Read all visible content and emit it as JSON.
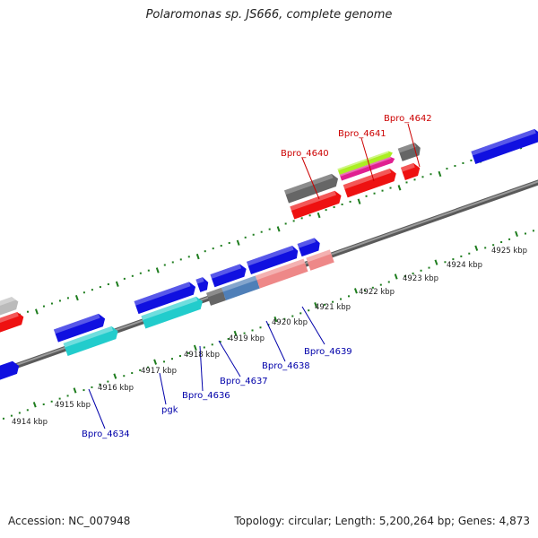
{
  "title": "Polaromonas sp. JS666, complete genome",
  "footer": {
    "accession": "Accession: NC_007948",
    "summary": "Topology: circular; Length: 5,200,264 bp; Genes: 4,873"
  },
  "colors": {
    "backbone": "#7a7a7a",
    "scale_dots": "#1e7d1e",
    "label_red": "#cc0000",
    "label_blue": "#0000aa",
    "blue": "#1010e0",
    "red": "#ee1111",
    "cyan": "#22cccc",
    "gray": "#666666",
    "lightgray": "#bbbbbb",
    "salmon": "#ee8888",
    "steel": "#4f7fb8",
    "lime": "#aaee22",
    "magenta": "#e02090"
  },
  "scale": {
    "unit": "kbp",
    "ticks": [
      {
        "label": "4914 kbp",
        "kbp": 4914
      },
      {
        "label": "4915 kbp",
        "kbp": 4915
      },
      {
        "label": "4916 kbp",
        "kbp": 4916
      },
      {
        "label": "4917 kbp",
        "kbp": 4917
      },
      {
        "label": "4918 kbp",
        "kbp": 4918
      },
      {
        "label": "4919 kbp",
        "kbp": 4919
      },
      {
        "label": "4920 kbp",
        "kbp": 4920
      },
      {
        "label": "4921 kbp",
        "kbp": 4921
      },
      {
        "label": "4922 kbp",
        "kbp": 4922
      },
      {
        "label": "4923 kbp",
        "kbp": 4923
      },
      {
        "label": "4924 kbp",
        "kbp": 4924
      },
      {
        "label": "4925 kbp",
        "kbp": 4925
      }
    ]
  },
  "labels": [
    {
      "id": "Bpro_4634",
      "text": "Bpro_4634",
      "strand": "minus"
    },
    {
      "id": "pgk",
      "text": "pgk",
      "strand": "minus"
    },
    {
      "id": "Bpro_4636",
      "text": "Bpro_4636",
      "strand": "minus"
    },
    {
      "id": "Bpro_4637",
      "text": "Bpro_4637",
      "strand": "minus"
    },
    {
      "id": "Bpro_4638",
      "text": "Bpro_4638",
      "strand": "minus"
    },
    {
      "id": "Bpro_4639",
      "text": "Bpro_4639",
      "strand": "minus"
    },
    {
      "id": "Bpro_4640",
      "text": "Bpro_4640",
      "strand": "plus"
    },
    {
      "id": "Bpro_4641",
      "text": "Bpro_4641",
      "strand": "plus"
    },
    {
      "id": "Bpro_4642",
      "text": "Bpro_4642",
      "strand": "plus"
    }
  ]
}
